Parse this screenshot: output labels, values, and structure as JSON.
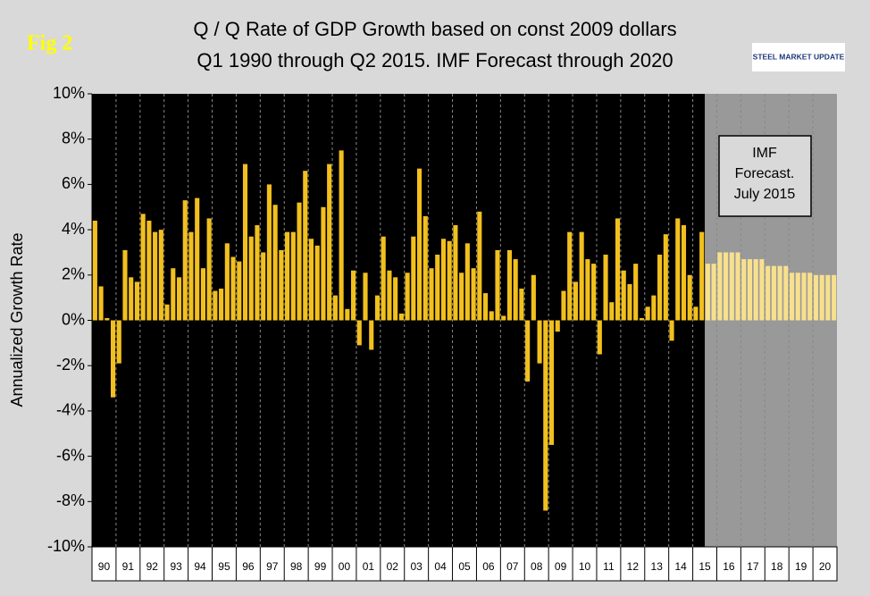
{
  "chart_data": {
    "type": "bar",
    "figure_label": "Fig 2",
    "title": [
      "Q / Q Rate of GDP Growth based on const 2009 dollars",
      "Q1 1990 through Q2 2015. IMF Forecast through 2020"
    ],
    "logo": "STEEL MARKET UPDATE",
    "y_label": "Annualized Growth Rate",
    "annotation": [
      "IMF",
      "Forecast.",
      "July 2015"
    ],
    "categories": [
      "90",
      null,
      null,
      null,
      "91",
      null,
      null,
      null,
      "92",
      null,
      null,
      null,
      "93",
      null,
      null,
      null,
      "94",
      null,
      null,
      null,
      "95",
      null,
      null,
      null,
      "96",
      null,
      null,
      null,
      "97",
      null,
      null,
      null,
      "98",
      null,
      null,
      null,
      "99",
      null,
      null,
      null,
      "00",
      null,
      null,
      null,
      "01",
      null,
      null,
      null,
      "02",
      null,
      null,
      null,
      "03",
      null,
      null,
      null,
      "04",
      null,
      null,
      null,
      "05",
      null,
      null,
      null,
      "06",
      null,
      null,
      null,
      "07",
      null,
      null,
      null,
      "08",
      null,
      null,
      null,
      "09",
      null,
      null,
      null,
      "10",
      null,
      null,
      null,
      "11",
      null,
      null,
      null,
      "12",
      null,
      null,
      null,
      "13",
      null,
      null,
      null,
      "14",
      null,
      null,
      null,
      "15",
      null,
      null,
      null,
      "16",
      null,
      null,
      null,
      "17",
      null,
      null,
      null,
      "18",
      null,
      null,
      null,
      "19",
      null,
      null,
      null,
      "20",
      null,
      null,
      null
    ],
    "series": [
      {
        "color": "#f2c01e",
        "values": [
          4.4,
          1.5,
          0.1,
          -3.4,
          -1.9,
          3.1,
          1.9,
          1.7,
          4.7,
          4.4,
          3.9,
          4.0,
          0.7,
          2.3,
          1.9,
          5.3,
          3.9,
          5.4,
          2.3,
          4.5,
          1.3,
          1.4,
          3.4,
          2.8,
          2.6,
          6.9,
          3.7,
          4.2,
          3.0,
          6.0,
          5.1,
          3.1,
          3.9,
          3.9,
          5.2,
          6.6,
          3.6,
          3.3,
          5.0,
          6.9,
          1.1,
          7.5,
          0.5,
          2.2,
          -1.1,
          2.1,
          -1.3,
          1.1,
          3.7,
          2.2,
          1.9,
          0.3,
          2.1,
          3.7,
          6.7,
          4.6,
          2.3,
          2.9,
          3.6,
          3.5,
          4.2,
          2.1,
          3.4,
          2.3,
          4.8,
          1.2,
          0.4,
          3.1,
          0.2,
          3.1,
          2.7,
          1.4,
          -2.7,
          2.0,
          -1.9,
          -8.4,
          -5.5,
          -0.5,
          1.3,
          3.9,
          1.7,
          3.9,
          2.7,
          2.5,
          -1.5,
          2.9,
          0.8,
          4.5,
          2.2,
          1.6,
          2.5,
          0.1,
          0.6,
          1.1,
          2.9,
          3.8,
          -0.9,
          4.5,
          4.2,
          2.0,
          0.6,
          3.9,
          null,
          null,
          null,
          null,
          null,
          null,
          null,
          null,
          null,
          null,
          null,
          null,
          null,
          null,
          null,
          null,
          null,
          null,
          null,
          null,
          null,
          null
        ]
      },
      {
        "color": "#f7e08e",
        "values": [
          null,
          null,
          null,
          null,
          null,
          null,
          null,
          null,
          null,
          null,
          null,
          null,
          null,
          null,
          null,
          null,
          null,
          null,
          null,
          null,
          null,
          null,
          null,
          null,
          null,
          null,
          null,
          null,
          null,
          null,
          null,
          null,
          null,
          null,
          null,
          null,
          null,
          null,
          null,
          null,
          null,
          null,
          null,
          null,
          null,
          null,
          null,
          null,
          null,
          null,
          null,
          null,
          null,
          null,
          null,
          null,
          null,
          null,
          null,
          null,
          null,
          null,
          null,
          null,
          null,
          null,
          null,
          null,
          null,
          null,
          null,
          null,
          null,
          null,
          null,
          null,
          null,
          null,
          null,
          null,
          null,
          null,
          null,
          null,
          null,
          null,
          null,
          null,
          null,
          null,
          null,
          null,
          null,
          null,
          null,
          null,
          null,
          null,
          null,
          null,
          null,
          null,
          2.5,
          2.5,
          3.0,
          3.0,
          3.0,
          3.0,
          2.7,
          2.7,
          2.7,
          2.7,
          2.4,
          2.4,
          2.4,
          2.4,
          2.1,
          2.1,
          2.1,
          2.1,
          2.0,
          2.0,
          2.0,
          2.0
        ]
      }
    ],
    "ylim": [
      -10,
      10
    ],
    "yticks": [
      {
        "value": -10,
        "label": "-10%"
      },
      {
        "value": -8,
        "label": "-8%"
      },
      {
        "value": -6,
        "label": "-6%"
      },
      {
        "value": -4,
        "label": "-4%"
      },
      {
        "value": -2,
        "label": "-2%"
      },
      {
        "value": 0,
        "label": "0%"
      },
      {
        "value": 2,
        "label": "2%"
      },
      {
        "value": 4,
        "label": "4%"
      },
      {
        "value": 6,
        "label": "6%"
      },
      {
        "value": 8,
        "label": "8%"
      },
      {
        "value": 10,
        "label": "10%"
      }
    ],
    "plot_background": "#000000",
    "forecast_background": "#999999",
    "grid": true
  }
}
